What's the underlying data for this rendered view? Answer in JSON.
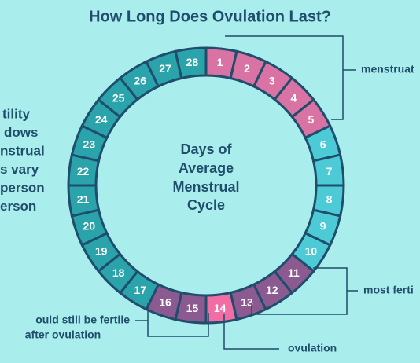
{
  "title": "How Long Does Ovulation Last?",
  "center_text": [
    "Days of",
    "Average",
    "Menstrual",
    "Cycle"
  ],
  "days": [
    {
      "label": 1,
      "color": "#d873a3"
    },
    {
      "label": 2,
      "color": "#d873a3"
    },
    {
      "label": 3,
      "color": "#d873a3"
    },
    {
      "label": 4,
      "color": "#d873a3"
    },
    {
      "label": 5,
      "color": "#d873a3"
    },
    {
      "label": 6,
      "color": "#4ccad6"
    },
    {
      "label": 7,
      "color": "#4ccad6"
    },
    {
      "label": 8,
      "color": "#4ccad6"
    },
    {
      "label": 9,
      "color": "#4ccad6"
    },
    {
      "label": 10,
      "color": "#4ccad6"
    },
    {
      "label": 11,
      "color": "#8b5a90"
    },
    {
      "label": 12,
      "color": "#8b5a90"
    },
    {
      "label": 13,
      "color": "#8b5a90"
    },
    {
      "label": 14,
      "color": "#f26da3"
    },
    {
      "label": 15,
      "color": "#8b5a90"
    },
    {
      "label": 16,
      "color": "#8b5a90"
    },
    {
      "label": 17,
      "color": "#2aa3aa"
    },
    {
      "label": 18,
      "color": "#2aa3aa"
    },
    {
      "label": 19,
      "color": "#2aa3aa"
    },
    {
      "label": 20,
      "color": "#2aa3aa"
    },
    {
      "label": 21,
      "color": "#2aa3aa"
    },
    {
      "label": 22,
      "color": "#2aa3aa"
    },
    {
      "label": 23,
      "color": "#2aa3aa"
    },
    {
      "label": 24,
      "color": "#2aa3aa"
    },
    {
      "label": 25,
      "color": "#2aa3aa"
    },
    {
      "label": 26,
      "color": "#2aa3aa"
    },
    {
      "label": 27,
      "color": "#2aa3aa"
    },
    {
      "label": 28,
      "color": "#2aa3aa"
    }
  ],
  "side_text": [
    "tility",
    "dows",
    "nstrual",
    "s vary",
    "person",
    "erson"
  ],
  "annotations": {
    "menstruation": "menstruat",
    "most_fertile": "most ferti",
    "fertile_after": [
      "ould still be fertile",
      "after ovulation"
    ],
    "ovulation": "ovulation"
  }
}
